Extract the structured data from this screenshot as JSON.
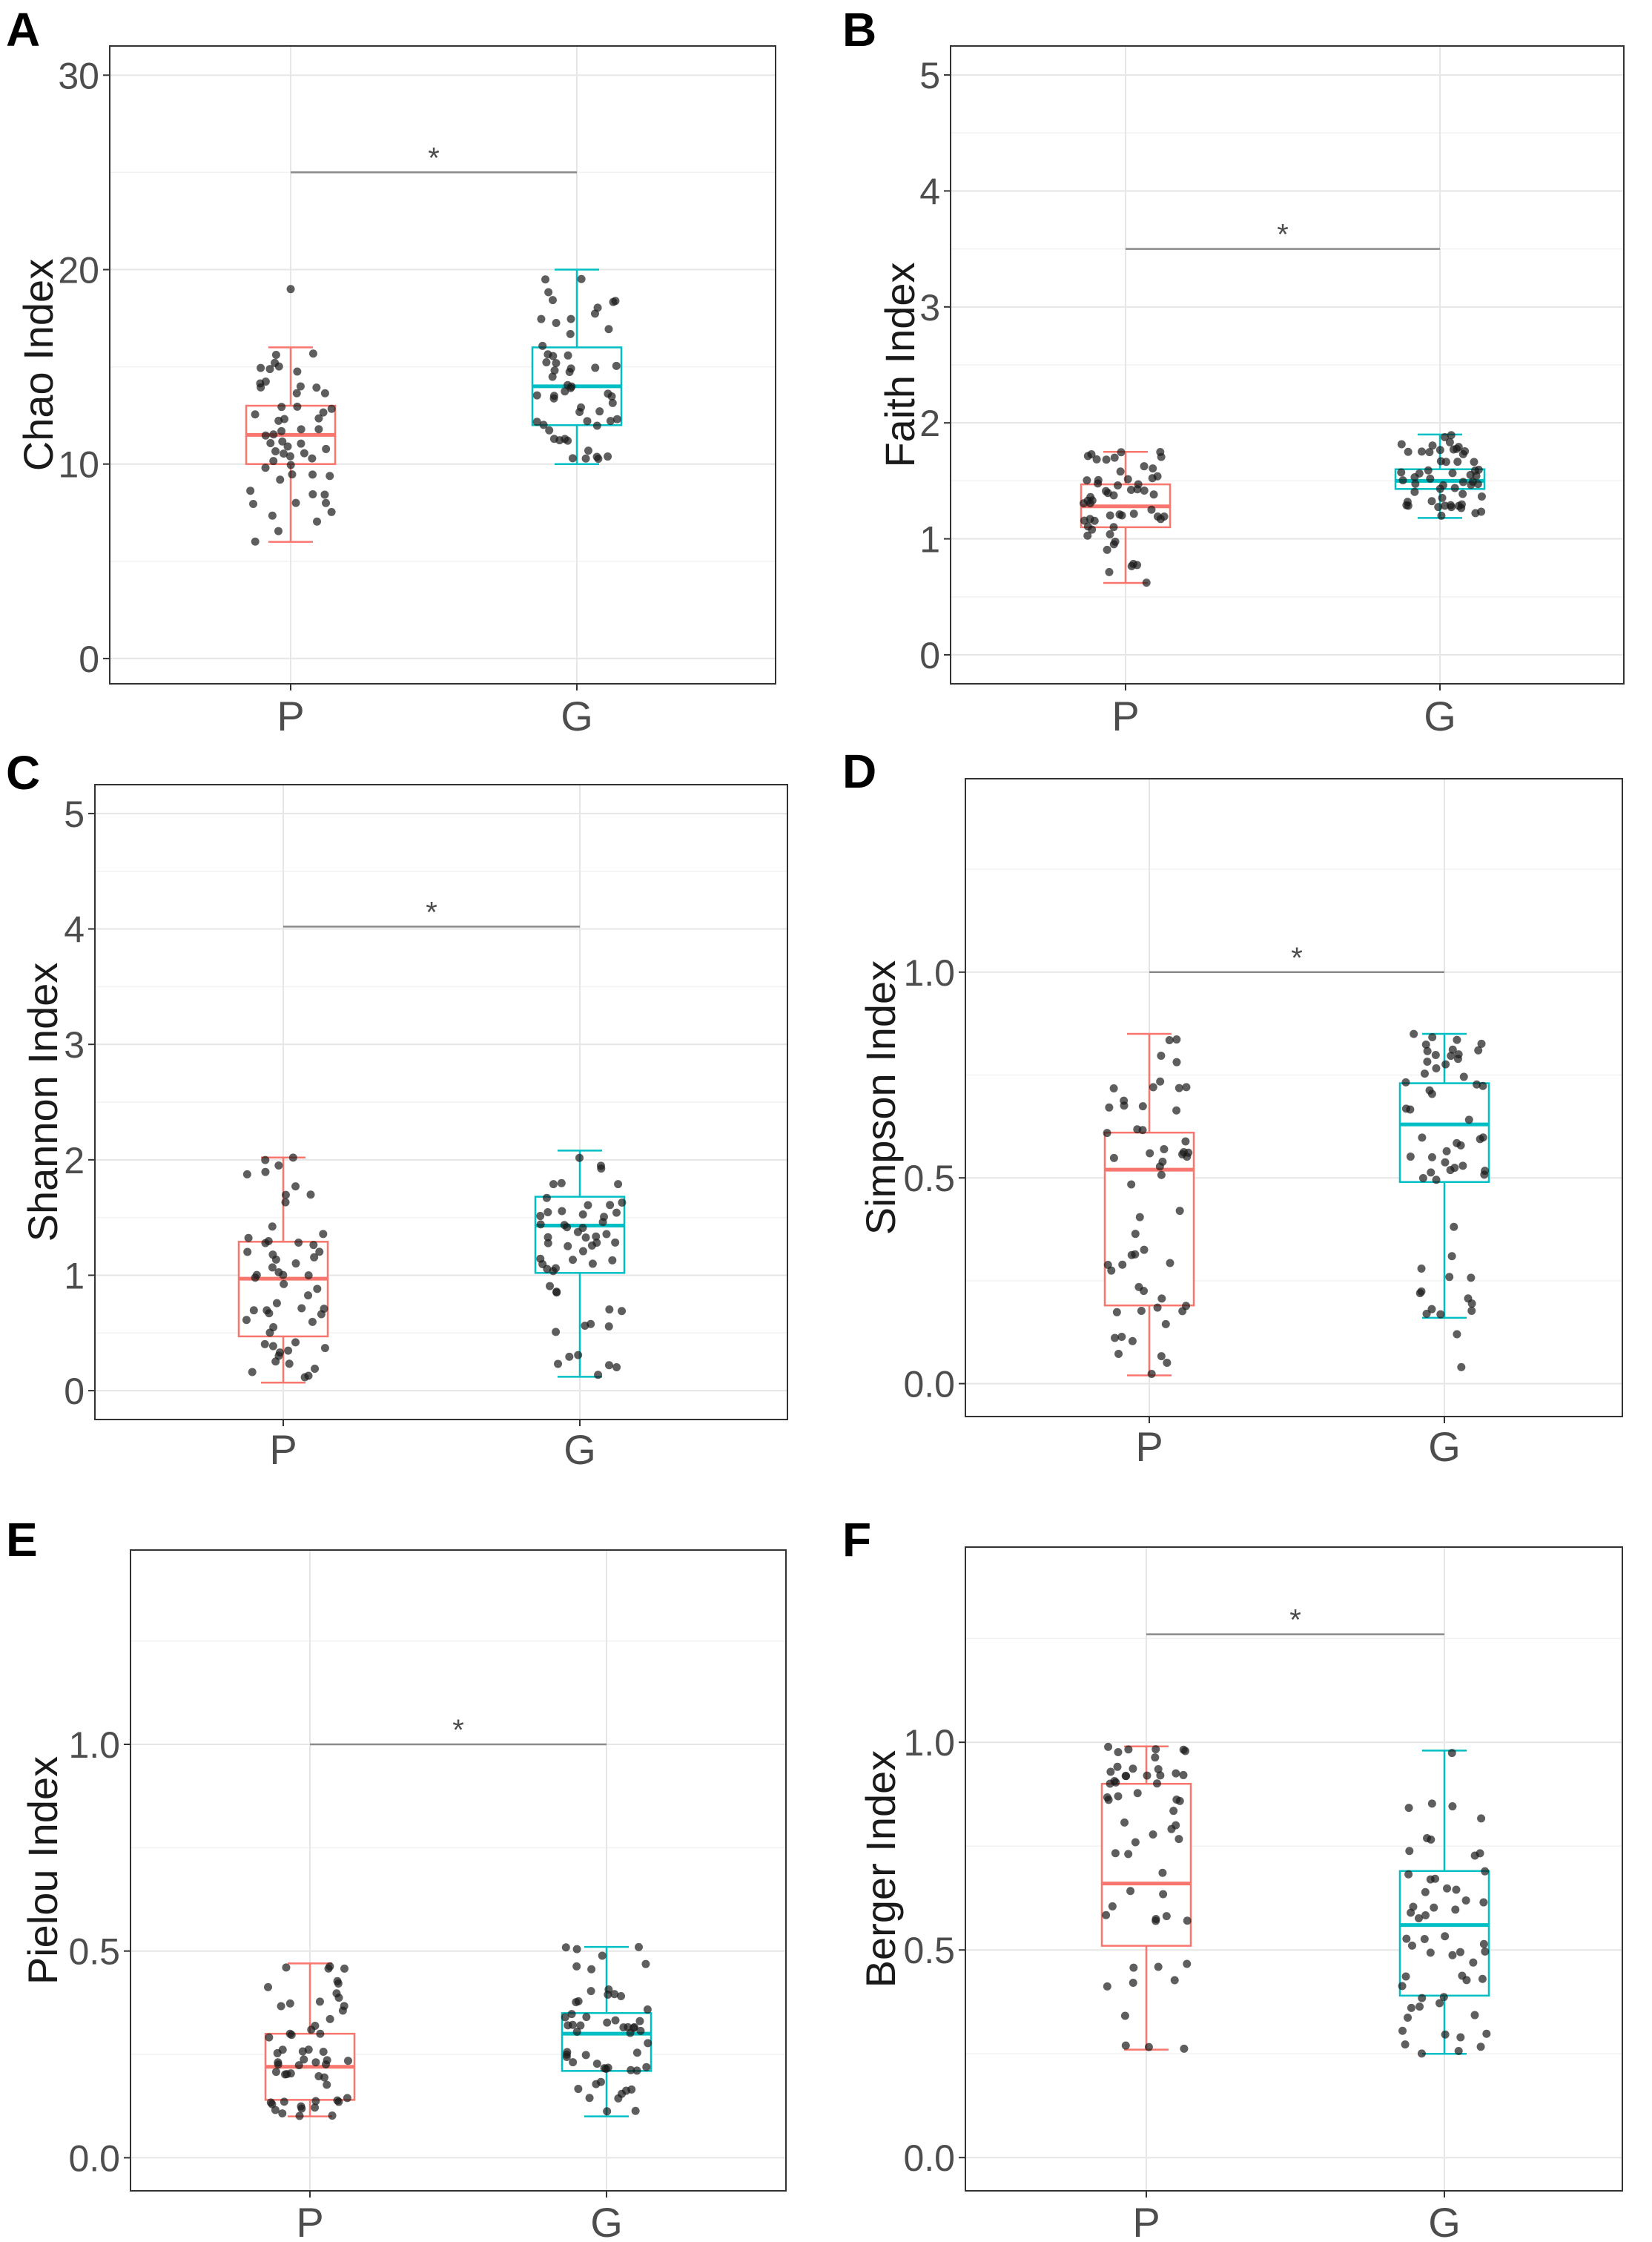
{
  "chart_data": [
    {
      "panel": "A",
      "type": "boxplot",
      "ylabel": "Chao Index",
      "categories": [
        "P",
        "G"
      ],
      "yticks": [
        0,
        10,
        20,
        30
      ],
      "ylim": [
        -1.3,
        31.5
      ],
      "boxes": [
        {
          "group": "P",
          "color": "#F8766D",
          "min": 6.0,
          "q1": 10.0,
          "median": 11.5,
          "q3": 13.0,
          "max": 16.0
        },
        {
          "group": "G",
          "color": "#00BFC4",
          "min": 10.0,
          "q1": 12.0,
          "median": 14.0,
          "q3": 16.0,
          "max": 20.0
        }
      ],
      "outliers": [
        {
          "group": "P",
          "value": 19.0
        }
      ],
      "significance": {
        "y": 25.0,
        "label": "*"
      }
    },
    {
      "panel": "B",
      "type": "boxplot",
      "ylabel": "Faith Index",
      "categories": [
        "P",
        "G"
      ],
      "yticks": [
        0,
        1,
        2,
        3,
        4,
        5
      ],
      "ylim": [
        -0.25,
        5.25
      ],
      "boxes": [
        {
          "group": "P",
          "color": "#F8766D",
          "min": 0.62,
          "q1": 1.1,
          "median": 1.28,
          "q3": 1.47,
          "max": 1.75
        },
        {
          "group": "G",
          "color": "#00BFC4",
          "min": 1.18,
          "q1": 1.43,
          "median": 1.5,
          "q3": 1.6,
          "max": 1.9
        }
      ],
      "outliers": [],
      "significance": {
        "y": 3.5,
        "label": "*"
      }
    },
    {
      "panel": "C",
      "type": "boxplot",
      "ylabel": "Shannon Index",
      "categories": [
        "P",
        "G"
      ],
      "yticks": [
        0,
        1,
        2,
        3,
        4,
        5
      ],
      "ylim": [
        -0.25,
        5.25
      ],
      "boxes": [
        {
          "group": "P",
          "color": "#F8766D",
          "min": 0.07,
          "q1": 0.47,
          "median": 0.97,
          "q3": 1.29,
          "max": 2.02
        },
        {
          "group": "G",
          "color": "#00BFC4",
          "min": 0.12,
          "q1": 1.02,
          "median": 1.43,
          "q3": 1.68,
          "max": 2.08
        }
      ],
      "outliers": [],
      "significance": {
        "y": 4.02,
        "label": "*"
      }
    },
    {
      "panel": "D",
      "type": "boxplot",
      "ylabel": "Simpson Index",
      "categories": [
        "P",
        "G"
      ],
      "yticks": [
        0.0,
        0.5,
        1.0
      ],
      "yticklabels": [
        "0.0",
        "0.5",
        "1.0"
      ],
      "ylim": [
        -0.08,
        1.47
      ],
      "boxes": [
        {
          "group": "P",
          "color": "#F8766D",
          "min": 0.02,
          "q1": 0.19,
          "median": 0.52,
          "q3": 0.61,
          "max": 0.85
        },
        {
          "group": "G",
          "color": "#00BFC4",
          "min": 0.16,
          "q1": 0.49,
          "median": 0.63,
          "q3": 0.73,
          "max": 0.85
        }
      ],
      "outliers": [
        {
          "group": "G",
          "value": 0.04
        },
        {
          "group": "G",
          "value": 0.12
        }
      ],
      "significance": {
        "y": 1.0,
        "label": "*"
      }
    },
    {
      "panel": "E",
      "type": "boxplot",
      "ylabel": "Pielou Index",
      "categories": [
        "P",
        "G"
      ],
      "yticks": [
        0.0,
        0.5,
        1.0
      ],
      "yticklabels": [
        "0.0",
        "0.5",
        "1.0"
      ],
      "ylim": [
        -0.08,
        1.47
      ],
      "boxes": [
        {
          "group": "P",
          "color": "#F8766D",
          "min": 0.1,
          "q1": 0.14,
          "median": 0.22,
          "q3": 0.3,
          "max": 0.47
        },
        {
          "group": "G",
          "color": "#00BFC4",
          "min": 0.1,
          "q1": 0.21,
          "median": 0.3,
          "q3": 0.35,
          "max": 0.51
        }
      ],
      "outliers": [],
      "significance": {
        "y": 1.0,
        "label": "*"
      }
    },
    {
      "panel": "F",
      "type": "boxplot",
      "ylabel": "Berger Index",
      "categories": [
        "P",
        "G"
      ],
      "yticks": [
        0.0,
        0.5,
        1.0
      ],
      "yticklabels": [
        "0.0",
        "0.5",
        "1.0"
      ],
      "ylim": [
        -0.08,
        1.47
      ],
      "boxes": [
        {
          "group": "P",
          "color": "#F8766D",
          "min": 0.26,
          "q1": 0.51,
          "median": 0.66,
          "q3": 0.9,
          "max": 0.99
        },
        {
          "group": "G",
          "color": "#00BFC4",
          "min": 0.25,
          "q1": 0.39,
          "median": 0.56,
          "q3": 0.69,
          "max": 0.98
        }
      ],
      "outliers": [],
      "significance": {
        "y": 1.26,
        "label": "*"
      }
    }
  ]
}
